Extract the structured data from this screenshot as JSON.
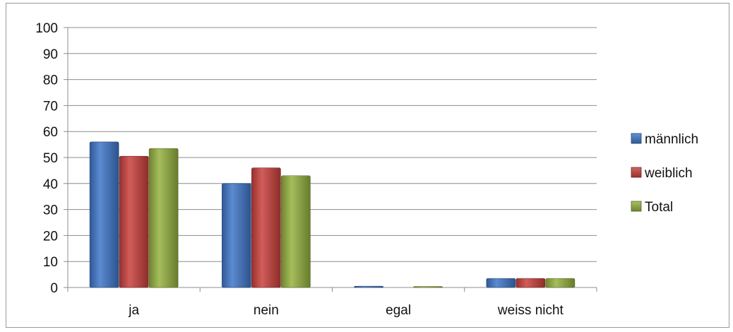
{
  "chart_data": {
    "type": "bar",
    "categories": [
      "ja",
      "nein",
      "egal",
      "weiss nicht"
    ],
    "series": [
      {
        "name": "männlich",
        "values": [
          56,
          40,
          0.5,
          3.5
        ],
        "color": "#3f77c9"
      },
      {
        "name": "weiblich",
        "values": [
          50.5,
          46,
          0,
          3.5
        ],
        "color": "#c9403c"
      },
      {
        "name": "Total",
        "values": [
          53.5,
          43,
          0.3,
          3.5
        ],
        "color": "#95b13f"
      }
    ],
    "ylim": [
      0,
      100
    ],
    "yticks": [
      0,
      10,
      20,
      30,
      40,
      50,
      60,
      70,
      80,
      90,
      100
    ],
    "grid": true,
    "legend_position": "right",
    "style": "3d-shaded"
  }
}
